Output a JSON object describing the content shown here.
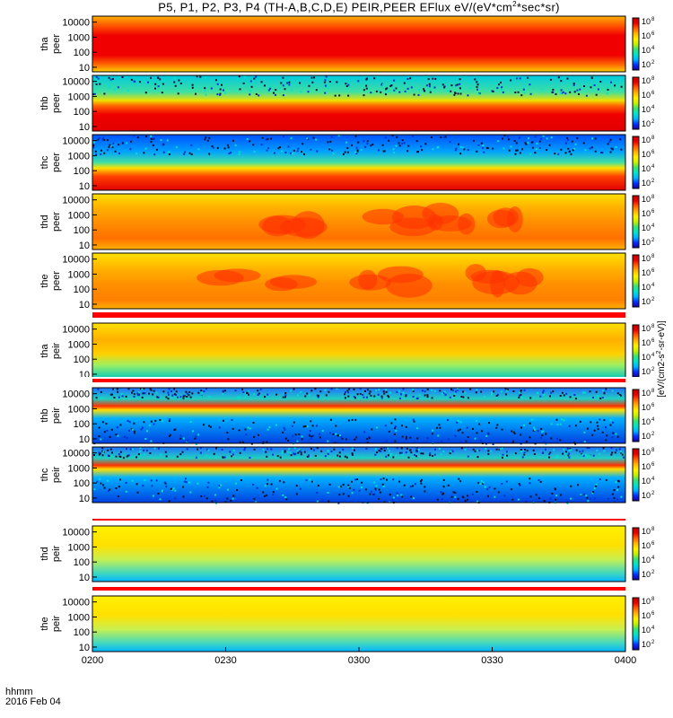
{
  "title": {
    "prefix": "P5, P1, P2, P3, P4 (TH-A,B,C,D,E) PEIR,PEER EFlux eV/(eV*cm",
    "sup": "2",
    "suffix": "*sec*sr)"
  },
  "time_axis": {
    "label_line1": "hhmm",
    "label_line2": "2016 Feb 04"
  },
  "colorbar": {
    "label_prefix": "[eV/(cm2-s",
    "label_sup": "2",
    "label_rest": "-sr-eV)]",
    "tick_base": "10"
  },
  "colors": {
    "spectrum": [
      "#20009a",
      "#0030ff",
      "#00b4ff",
      "#00e6c8",
      "#40e070",
      "#c8f000",
      "#fff000",
      "#ffb400",
      "#ff6000",
      "#e80000",
      "#c00000"
    ],
    "fill": "#ff0000"
  },
  "chart_data": {
    "type": "heatmap",
    "x": {
      "label": "hhmm",
      "ticks": [
        "0200",
        "0230",
        "0300",
        "0330",
        "0400"
      ],
      "range_minutes": [
        0,
        120
      ]
    },
    "y_scale": "log",
    "y_ticks": [
      "10",
      "100",
      "1000",
      "10000"
    ],
    "y_range": [
      5,
      25000
    ],
    "colorbar_ticks_exp": [
      "2",
      "4",
      "6",
      "8"
    ],
    "panels": [
      {
        "probe": "tha",
        "product": "peer",
        "pattern": "peer_hot"
      },
      {
        "probe": "thb",
        "product": "peer",
        "pattern": "peer_cool"
      },
      {
        "probe": "thc",
        "product": "peer",
        "pattern": "peer_cold"
      },
      {
        "probe": "thd",
        "product": "peer",
        "pattern": "peer_d"
      },
      {
        "probe": "the",
        "product": "peer",
        "pattern": "peer_e"
      },
      {
        "probe": "tha",
        "product": "peir",
        "pattern": "peir_warm"
      },
      {
        "probe": "thb",
        "product": "peir",
        "pattern": "peir_band"
      },
      {
        "probe": "thc",
        "product": "peir",
        "pattern": "peir_band"
      },
      {
        "probe": "thd",
        "product": "peir",
        "pattern": "peir_yellow"
      },
      {
        "probe": "the",
        "product": "peir",
        "pattern": "peir_yellow"
      }
    ]
  }
}
